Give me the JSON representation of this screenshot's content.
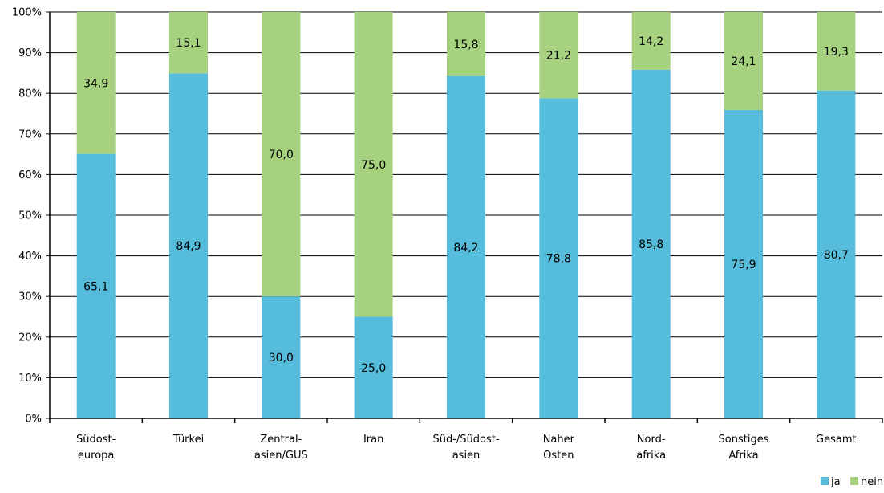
{
  "chart_data": {
    "type": "bar",
    "stacked": true,
    "categories": [
      [
        "Südost-",
        "europa"
      ],
      [
        "Türkei"
      ],
      [
        "Zentral-",
        "asien/GUS"
      ],
      [
        "Iran"
      ],
      [
        "Süd-/Südost-",
        "asien"
      ],
      [
        "Naher",
        "Osten"
      ],
      [
        "Nord-",
        "afrika"
      ],
      [
        "Sonstiges",
        "Afrika"
      ],
      [
        "Gesamt"
      ]
    ],
    "series": [
      {
        "name": "ja",
        "color": "#55BCDB",
        "values": [
          65.1,
          84.9,
          30.0,
          25.0,
          84.2,
          78.8,
          85.8,
          75.9,
          80.7
        ],
        "labels": [
          "65,1",
          "84,9",
          "30,0",
          "25,0",
          "84,2",
          "78,8",
          "85,8",
          "75,9",
          "80,7"
        ]
      },
      {
        "name": "nein",
        "color": "#A6D27F",
        "values": [
          34.9,
          15.1,
          70.0,
          75.0,
          15.8,
          21.2,
          14.2,
          24.1,
          19.3
        ],
        "labels": [
          "34,9",
          "15,1",
          "70,0",
          "75,0",
          "15,8",
          "21,2",
          "14,2",
          "24,1",
          "19,3"
        ]
      }
    ],
    "ylim": [
      0,
      100
    ],
    "yticks": [
      "0%",
      "10%",
      "20%",
      "30%",
      "40%",
      "50%",
      "60%",
      "70%",
      "80%",
      "90%",
      "100%"
    ],
    "grid": true,
    "legend_position": "bottom-right"
  }
}
